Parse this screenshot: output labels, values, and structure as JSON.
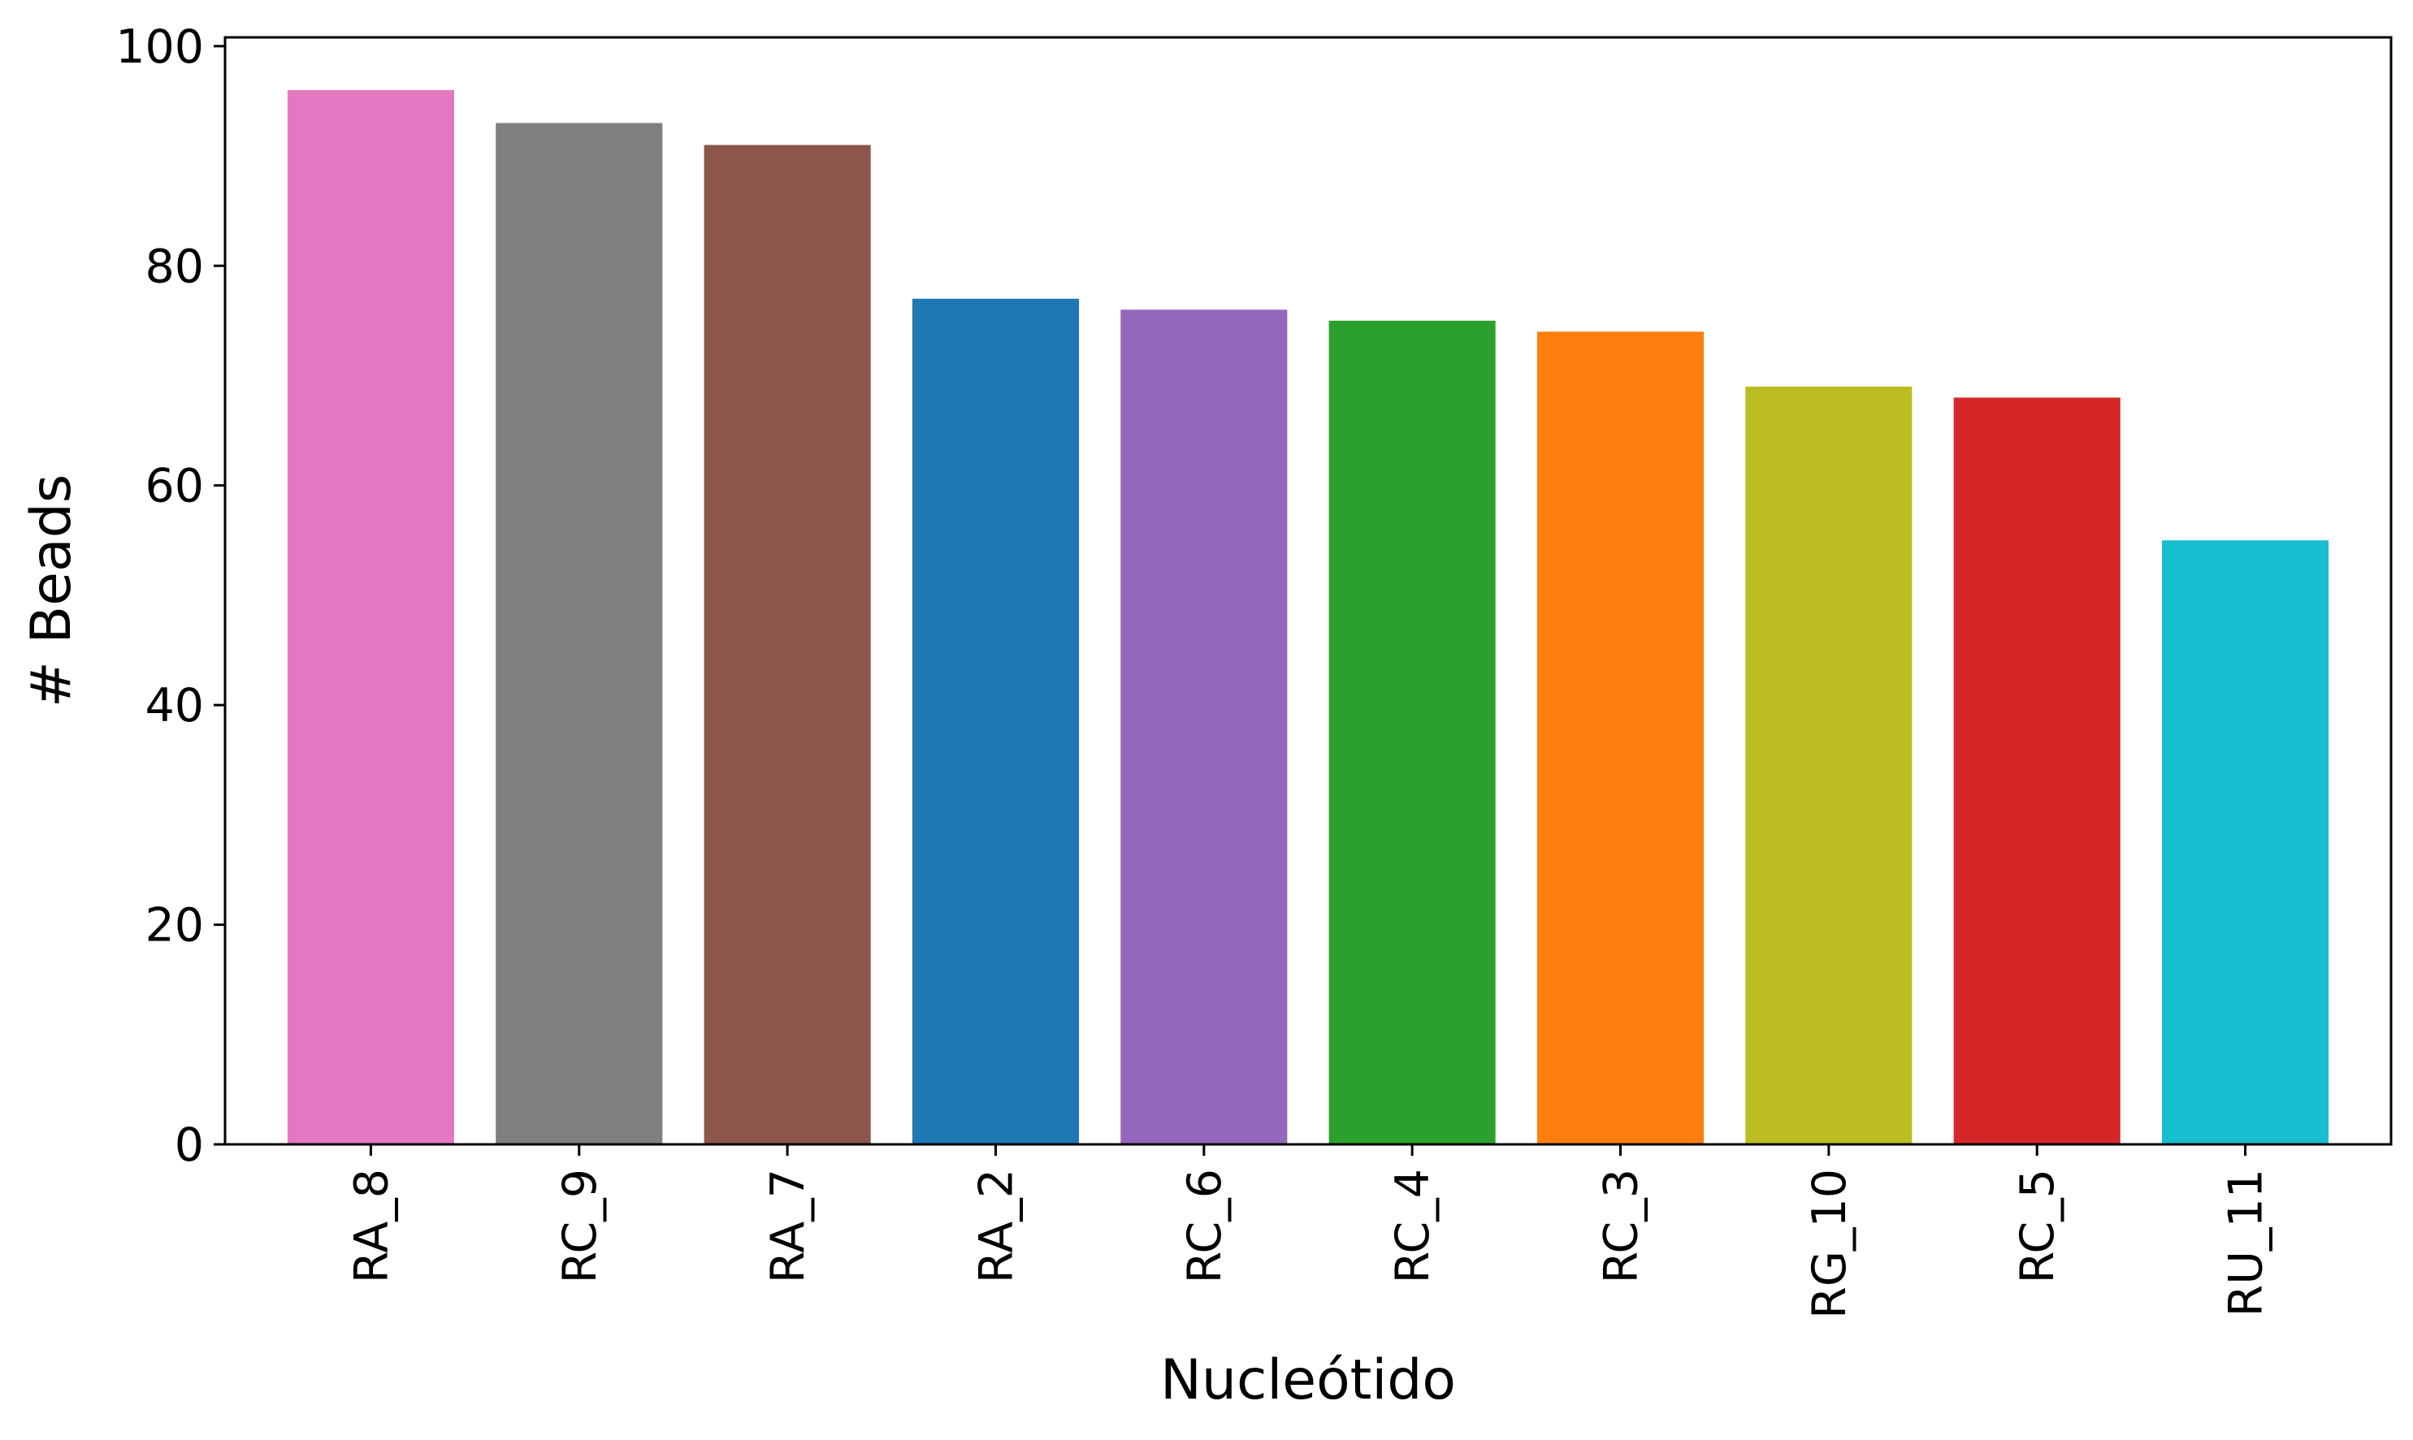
{
  "chart_data": {
    "type": "bar",
    "title": "",
    "xlabel": "Nucleótido",
    "ylabel": "# Beads",
    "categories": [
      "RA_8",
      "RC_9",
      "RA_7",
      "RA_2",
      "RC_6",
      "RC_4",
      "RC_3",
      "RG_10",
      "RC_5",
      "RU_11"
    ],
    "values": [
      96,
      93,
      91,
      77,
      76,
      75,
      74,
      69,
      68,
      55
    ],
    "colors": [
      "#e377c2",
      "#7f7f7f",
      "#8c564b",
      "#1f77b4",
      "#9467bd",
      "#2ca02c",
      "#ff7f0e",
      "#bcbd22",
      "#d62728",
      "#17becf"
    ],
    "ylim": [
      0,
      100.8
    ],
    "yticks": [
      0,
      20,
      40,
      60,
      80,
      100
    ],
    "grid": false,
    "legend": "none"
  }
}
